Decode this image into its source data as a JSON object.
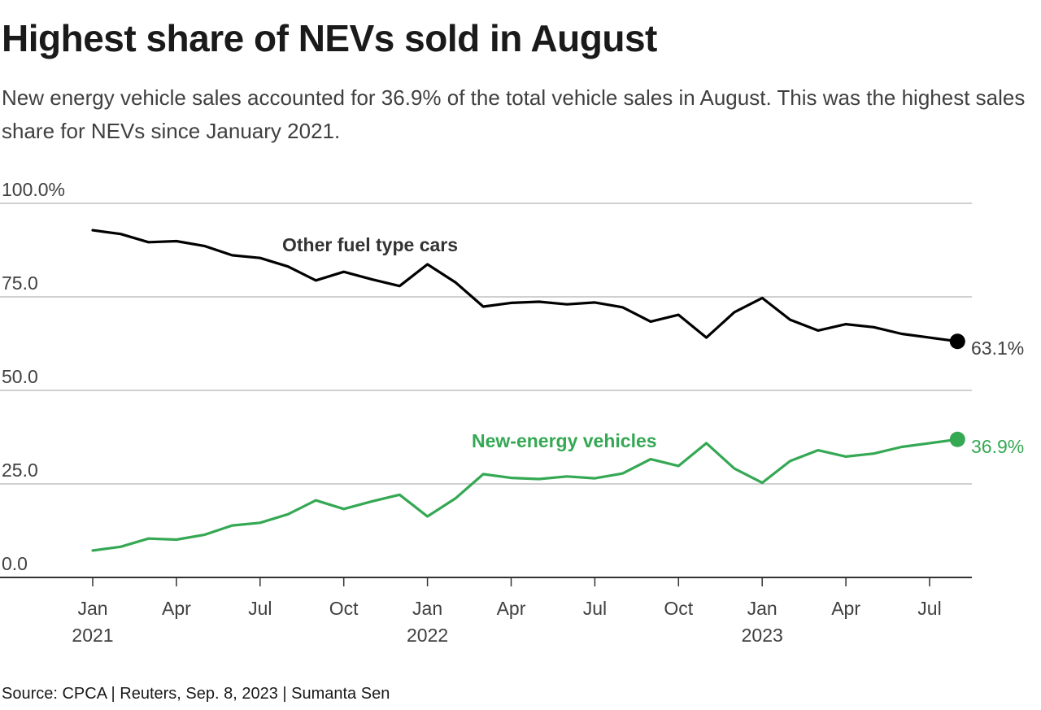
{
  "header": {
    "title": "Highest share of NEVs sold in August",
    "subtitle": "New energy vehicle sales accounted for 36.9% of the total vehicle sales in August. This was the highest sales share for NEVs since January 2021."
  },
  "footer": {
    "source": "Source: CPCA | Reuters, Sep. 8, 2023 | Sumanta Sen"
  },
  "colors": {
    "other_fuel": "#000000",
    "nev": "#34a853",
    "grid": "#b3b3b3",
    "axis": "#333333"
  },
  "chart_data": {
    "type": "line",
    "x": [
      "2021-01",
      "2021-02",
      "2021-03",
      "2021-04",
      "2021-05",
      "2021-06",
      "2021-07",
      "2021-08",
      "2021-09",
      "2021-10",
      "2021-11",
      "2021-12",
      "2022-01",
      "2022-02",
      "2022-03",
      "2022-04",
      "2022-05",
      "2022-06",
      "2022-07",
      "2022-08",
      "2022-09",
      "2022-10",
      "2022-11",
      "2022-12",
      "2023-01",
      "2023-02",
      "2023-03",
      "2023-04",
      "2023-05",
      "2023-06",
      "2023-07",
      "2023-08"
    ],
    "xticks": [
      {
        "x": "2021-01",
        "label": "Jan",
        "year": "2021"
      },
      {
        "x": "2021-04",
        "label": "Apr",
        "year": ""
      },
      {
        "x": "2021-07",
        "label": "Jul",
        "year": ""
      },
      {
        "x": "2021-10",
        "label": "Oct",
        "year": ""
      },
      {
        "x": "2022-01",
        "label": "Jan",
        "year": "2022"
      },
      {
        "x": "2022-04",
        "label": "Apr",
        "year": ""
      },
      {
        "x": "2022-07",
        "label": "Jul",
        "year": ""
      },
      {
        "x": "2022-10",
        "label": "Oct",
        "year": ""
      },
      {
        "x": "2023-01",
        "label": "Jan",
        "year": "2023"
      },
      {
        "x": "2023-04",
        "label": "Apr",
        "year": ""
      },
      {
        "x": "2023-07",
        "label": "Jul",
        "year": ""
      }
    ],
    "yticks": [
      "100.0%",
      "75.0",
      "50.0",
      "25.0",
      "0.0"
    ],
    "ytick_values": [
      100,
      75,
      50,
      25,
      0
    ],
    "ylim": [
      0,
      100
    ],
    "grid": true,
    "series": [
      {
        "name": "Other fuel type cars",
        "color": "#000000",
        "end_label": "63.1%",
        "values": [
          92.8,
          91.8,
          89.6,
          89.9,
          88.6,
          86.1,
          85.4,
          83.1,
          79.4,
          81.7,
          79.7,
          77.9,
          83.7,
          78.9,
          72.4,
          73.4,
          73.7,
          73.0,
          73.5,
          72.2,
          68.4,
          70.2,
          64.1,
          70.9,
          74.7,
          68.9,
          66.0,
          67.7,
          66.9,
          65.1,
          64.1,
          63.1
        ]
      },
      {
        "name": "New-energy vehicles",
        "color": "#34a853",
        "end_label": "36.9%",
        "values": [
          7.2,
          8.2,
          10.4,
          10.1,
          11.4,
          13.9,
          14.6,
          16.9,
          20.6,
          18.3,
          20.3,
          22.1,
          16.3,
          21.1,
          27.6,
          26.6,
          26.3,
          27.0,
          26.5,
          27.8,
          31.6,
          29.8,
          35.9,
          29.1,
          25.3,
          31.1,
          34.0,
          32.3,
          33.1,
          34.9,
          35.9,
          36.9
        ]
      }
    ]
  }
}
